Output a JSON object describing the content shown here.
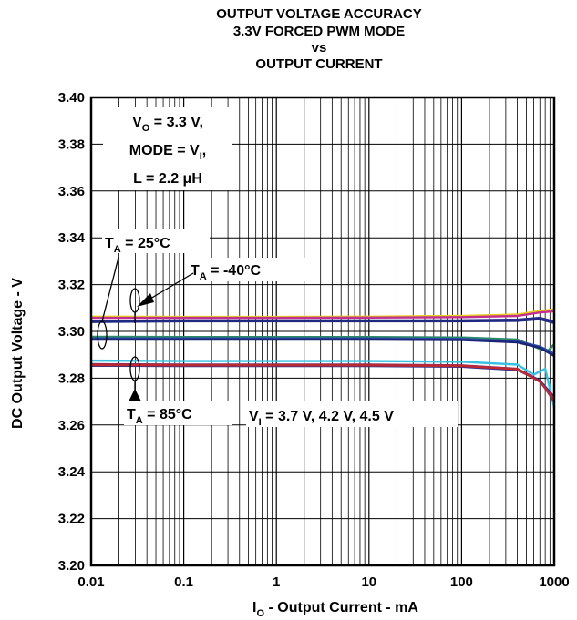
{
  "chart_data": {
    "type": "line",
    "title_lines": [
      "OUTPUT VOLTAGE ACCURACY",
      "3.3V FORCED PWM MODE",
      "vs",
      "OUTPUT CURRENT"
    ],
    "xlabel": {
      "pre": "I",
      "sub": "O",
      "post": " - Output Current - mA"
    },
    "ylabel": "DC Output Voltage - V",
    "x_scale": "log",
    "xlim": [
      0.01,
      1000
    ],
    "ylim": [
      3.2,
      3.4
    ],
    "grid": true,
    "x_ticks": [
      "0.01",
      "0.1",
      "1",
      "10",
      "100",
      "1000"
    ],
    "y_ticks": [
      "3.20",
      "3.22",
      "3.24",
      "3.26",
      "3.28",
      "3.30",
      "3.32",
      "3.34",
      "3.36",
      "3.38",
      "3.40"
    ],
    "annotations": {
      "conditions": [
        {
          "pre": "V",
          "sub": "O",
          "post": " = 3.3 V,"
        },
        {
          "pre": "MODE = V",
          "sub": "I",
          "post": ","
        },
        {
          "pre": "L = 2.2 μH",
          "sub": "",
          "post": ""
        }
      ],
      "ta_25": {
        "pre": "T",
        "sub": "A",
        "post": " = 25°C"
      },
      "ta_m40": {
        "pre": "T",
        "sub": "A",
        "post": " = -40°C"
      },
      "ta_85": {
        "pre": "T",
        "sub": "A",
        "post": " = 85°C"
      },
      "vi": {
        "pre": "V",
        "sub": "I",
        "post": " = 3.7 V, 4.2 V, 4.5 V"
      }
    },
    "series": [
      {
        "color": "#e8d020",
        "x": [
          0.01,
          0.1,
          1,
          10,
          100,
          400,
          700,
          1000
        ],
        "y": [
          3.3063,
          3.3062,
          3.3062,
          3.3063,
          3.3066,
          3.3072,
          3.3088,
          3.3094
        ]
      },
      {
        "color": "#c03090",
        "x": [
          0.01,
          0.1,
          1,
          10,
          100,
          400,
          700,
          1000
        ],
        "y": [
          3.3058,
          3.3058,
          3.3058,
          3.3059,
          3.3061,
          3.3066,
          3.3081,
          3.3086
        ]
      },
      {
        "color": "#2a2d8c",
        "x": [
          0.01,
          0.1,
          1,
          10,
          100,
          400,
          700,
          1000
        ],
        "y": [
          3.3045,
          3.3047,
          3.3047,
          3.3047,
          3.3047,
          3.305,
          3.3058,
          3.3042
        ]
      },
      {
        "color": "#1e2a80",
        "x": [
          0.01,
          0.1,
          1,
          10,
          100,
          400,
          700,
          1000
        ],
        "y": [
          3.304,
          3.3043,
          3.3043,
          3.3043,
          3.3043,
          3.3045,
          3.3052,
          3.3036
        ]
      },
      {
        "color": "#2c8a6a",
        "x": [
          0.01,
          0.1,
          1,
          10,
          100,
          400,
          700,
          850,
          1000
        ],
        "y": [
          3.2977,
          3.2976,
          3.2976,
          3.2976,
          3.2974,
          3.2965,
          3.2925,
          3.2915,
          3.2945
        ]
      },
      {
        "color": "#2a4aa0",
        "x": [
          0.01,
          0.1,
          1,
          10,
          100,
          400,
          700,
          1000
        ],
        "y": [
          3.297,
          3.297,
          3.297,
          3.297,
          3.2968,
          3.2958,
          3.2935,
          3.2905
        ]
      },
      {
        "color": "#1c2478",
        "x": [
          0.01,
          0.1,
          1,
          10,
          100,
          400,
          700,
          1000
        ],
        "y": [
          3.2965,
          3.2965,
          3.2965,
          3.2965,
          3.2963,
          3.2953,
          3.293,
          3.2895
        ]
      },
      {
        "color": "#38c0e0",
        "x": [
          0.01,
          0.1,
          1,
          10,
          100,
          400,
          600,
          800,
          1000
        ],
        "y": [
          3.2875,
          3.2873,
          3.2873,
          3.2873,
          3.287,
          3.2858,
          3.2815,
          3.284,
          3.2675
        ]
      },
      {
        "color": "#8a3060",
        "x": [
          0.01,
          0.1,
          1,
          10,
          100,
          400,
          700,
          1000
        ],
        "y": [
          3.286,
          3.2858,
          3.2858,
          3.2858,
          3.2855,
          3.284,
          3.279,
          3.27
        ]
      },
      {
        "color": "#2a3490",
        "x": [
          0.01,
          0.1,
          1,
          10,
          100,
          400,
          700,
          1000
        ],
        "y": [
          3.2853,
          3.2852,
          3.2852,
          3.2852,
          3.2849,
          3.2835,
          3.279,
          3.272
        ]
      },
      {
        "color": "#c02830",
        "x": [
          0.01,
          0.1,
          1,
          10,
          100,
          400,
          700,
          1000
        ],
        "y": [
          3.2856,
          3.2855,
          3.2855,
          3.2855,
          3.2852,
          3.2838,
          3.2785,
          3.271
        ]
      }
    ]
  }
}
